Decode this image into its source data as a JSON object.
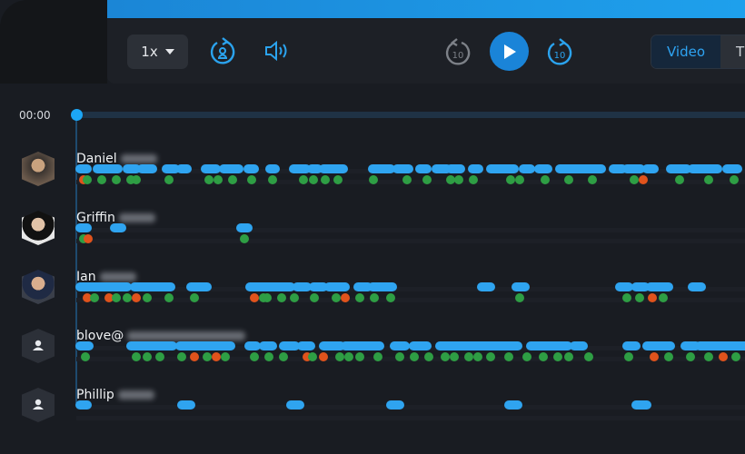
{
  "player": {
    "speed": "1x",
    "skip_back": "10",
    "skip_forward": "10"
  },
  "tabs": [
    {
      "label": "Video",
      "active": true
    },
    {
      "label": "T",
      "active": false
    }
  ],
  "timeline": {
    "current_time": "00:00"
  },
  "colors": {
    "accent": "#1ea0ec",
    "blue": "#2fa4f0",
    "green": "#2e9e44",
    "orange": "#e0531c"
  },
  "participants": [
    {
      "first_name": "Daniel",
      "avatar": "photo"
    },
    {
      "first_name": "Griffin",
      "avatar": "photo"
    },
    {
      "first_name": "Ian",
      "avatar": "photo"
    },
    {
      "first_name": "blove@",
      "avatar": "person-icon"
    },
    {
      "first_name": "Phillip",
      "avatar": "person-icon"
    }
  ]
}
